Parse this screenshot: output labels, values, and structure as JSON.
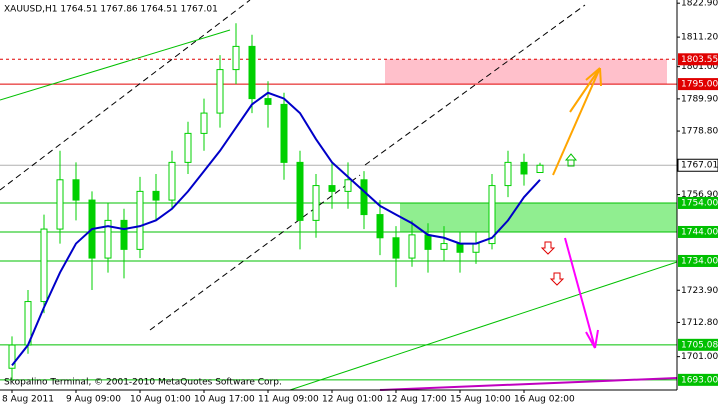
{
  "chart_data": {
    "type": "candlestick",
    "title": "XAUUSD,H1  1764.51 1767.86 1764.51 1767.01",
    "footer": "Skopalino Terminal, © 2001-2010 MetaQuotes Software Corp.",
    "categories": [
      "8 Aug 2011",
      null,
      null,
      null,
      "9 Aug 09:00",
      null,
      null,
      null,
      "10 Aug 01:00",
      null,
      null,
      null,
      "10 Aug 17:00",
      null,
      null,
      null,
      "11 Aug 09:00",
      null,
      null,
      null,
      "12 Aug 01:00",
      null,
      null,
      null,
      "12 Aug 17:00",
      null,
      null,
      null,
      "15 Aug 10:00",
      null,
      null,
      null,
      "16 Aug 02:00",
      null
    ],
    "open": [
      1697,
      1705,
      1720,
      1745,
      1762,
      1755,
      1735,
      1748,
      1738,
      1758,
      1755,
      1768,
      1778,
      1785,
      1800,
      1808,
      1790,
      1788,
      1768,
      1748,
      1760,
      1758,
      1762,
      1750,
      1742,
      1735,
      1743,
      1738,
      1740,
      1737,
      1740,
      1760,
      1768,
      1764.51
    ],
    "high": [
      1708,
      1724,
      1750,
      1772,
      1768,
      1758,
      1754,
      1752,
      1763,
      1764,
      1772,
      1782,
      1790,
      1805,
      1816,
      1812,
      1796,
      1792,
      1772,
      1764,
      1768,
      1768,
      1765,
      1755,
      1746,
      1748,
      1747,
      1746,
      1744,
      1744,
      1764,
      1772,
      1771,
      1767.86
    ],
    "low": [
      1693,
      1702,
      1716,
      1740,
      1748,
      1724,
      1730,
      1728,
      1735,
      1748,
      1752,
      1764,
      1772,
      1780,
      1795,
      1785,
      1780,
      1762,
      1738,
      1742,
      1752,
      1752,
      1745,
      1736,
      1725,
      1732,
      1730,
      1734,
      1730,
      1733,
      1738,
      1756,
      1760,
      1764.51
    ],
    "close": [
      1705,
      1720,
      1745,
      1762,
      1755,
      1735,
      1748,
      1738,
      1758,
      1755,
      1768,
      1778,
      1785,
      1800,
      1808,
      1790,
      1788,
      1768,
      1748,
      1760,
      1758,
      1762,
      1750,
      1742,
      1735,
      1743,
      1738,
      1740,
      1737,
      1740,
      1760,
      1768,
      1764,
      1767.01
    ],
    "candle_color": "#00d000",
    "ma": {
      "color": "#0000c8",
      "values": [
        1698,
        1705,
        1718,
        1730,
        1740,
        1745,
        1746,
        1745,
        1746,
        1748,
        1752,
        1758,
        1765,
        1772,
        1780,
        1788,
        1792,
        1790,
        1785,
        1776,
        1768,
        1763,
        1758,
        1753,
        1750,
        1747,
        1743,
        1742,
        1740,
        1740,
        1742,
        1748,
        1756,
        1762
      ]
    },
    "ylim": [
      1689.5,
      1824
    ],
    "yticks": [
      {
        "value": 1822.9,
        "label": "1822.90"
      },
      {
        "value": 1811.2,
        "label": "1811.20"
      },
      {
        "value": 1801,
        "label": "1801.00"
      },
      {
        "value": 1789.9,
        "label": "1789.90"
      },
      {
        "value": 1778.8,
        "label": "1778.80"
      },
      {
        "value": 1756.9,
        "label": "1756.90"
      },
      {
        "value": 1723.9,
        "label": "1723.90"
      },
      {
        "value": 1712.8,
        "label": "1712.80"
      },
      {
        "value": 1701,
        "label": "1701.00"
      }
    ],
    "levels": [
      {
        "value": 1803.55,
        "color": "#e00000",
        "dashed": true,
        "zone_color": "#ffc0cb"
      },
      {
        "value": 1795,
        "label": "1795.00",
        "color": "#e00000"
      },
      {
        "value": 1767.01,
        "color": "#b0b0b0"
      },
      {
        "value": 1754,
        "label": "1754.00",
        "color": "#00c000",
        "zone_color": "#90ee90"
      },
      {
        "value": 1744,
        "label": "1744.00",
        "color": "#00c000"
      },
      {
        "value": 1734,
        "label": "1734.00",
        "color": "#00c000"
      },
      {
        "value": 1705.08,
        "color": "#00c000"
      },
      {
        "value": 1693,
        "label": "1693.00",
        "color": "#00c000"
      }
    ]
  }
}
